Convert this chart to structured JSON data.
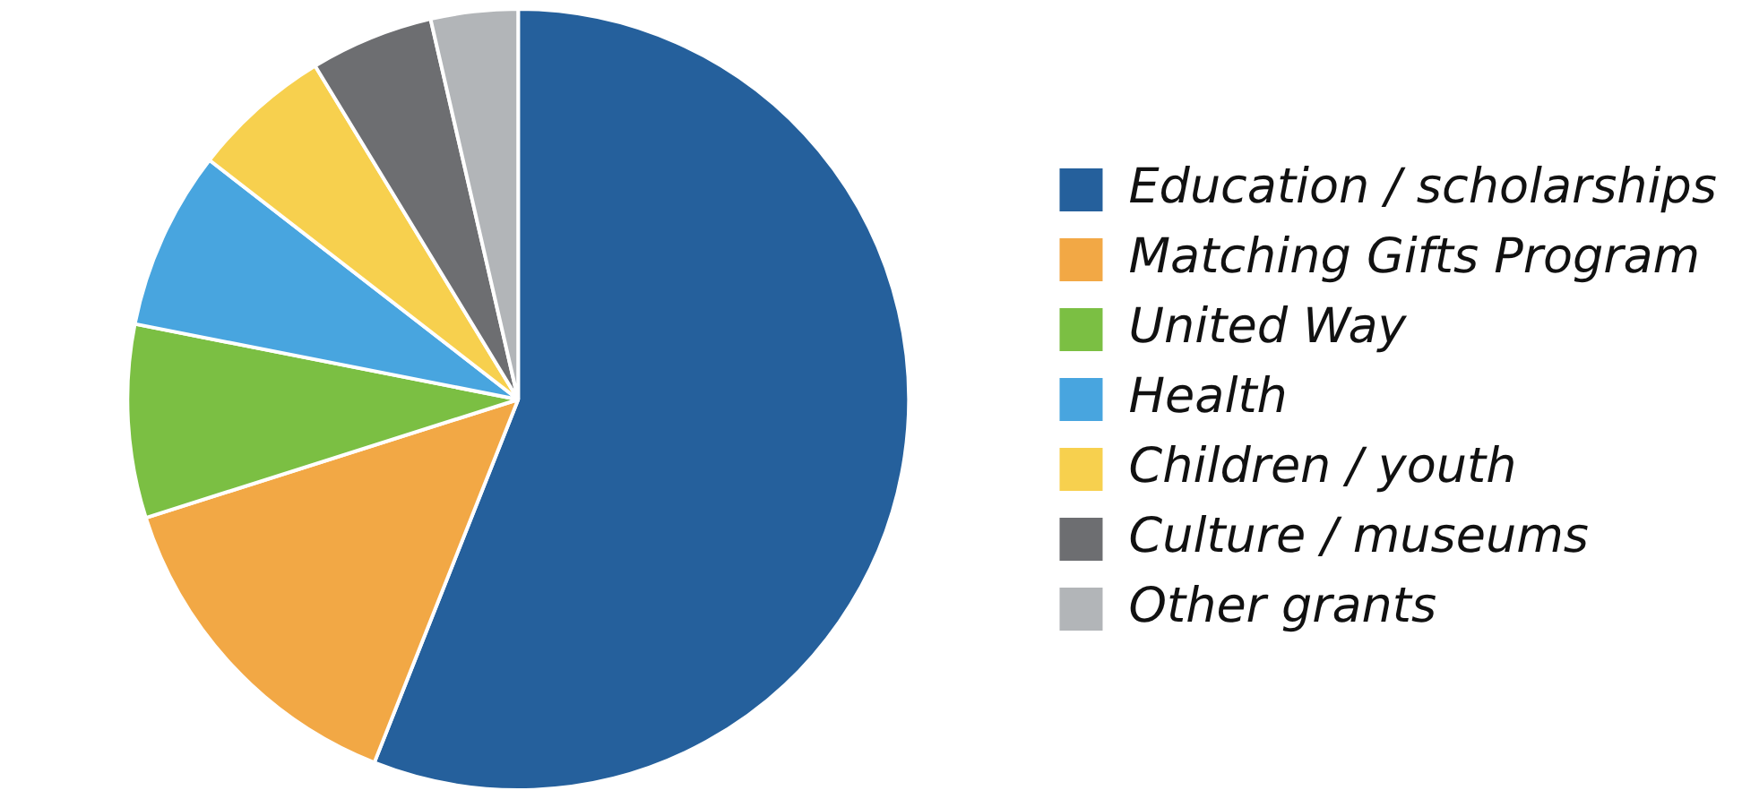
{
  "chart_data": {
    "type": "pie",
    "categories": [
      "Education / scholarships",
      "Matching Gifts Program",
      "United Way",
      "Health",
      "Children / youth",
      "Culture / museums",
      "Other grants"
    ],
    "values": [
      56.0,
      14.1,
      8.0,
      7.4,
      5.8,
      5.1,
      3.6
    ],
    "colors": [
      "#25609c",
      "#f2a845",
      "#7bbf43",
      "#48a5df",
      "#f7d04e",
      "#6d6e71",
      "#b2b5b8"
    ],
    "legend": "right"
  }
}
